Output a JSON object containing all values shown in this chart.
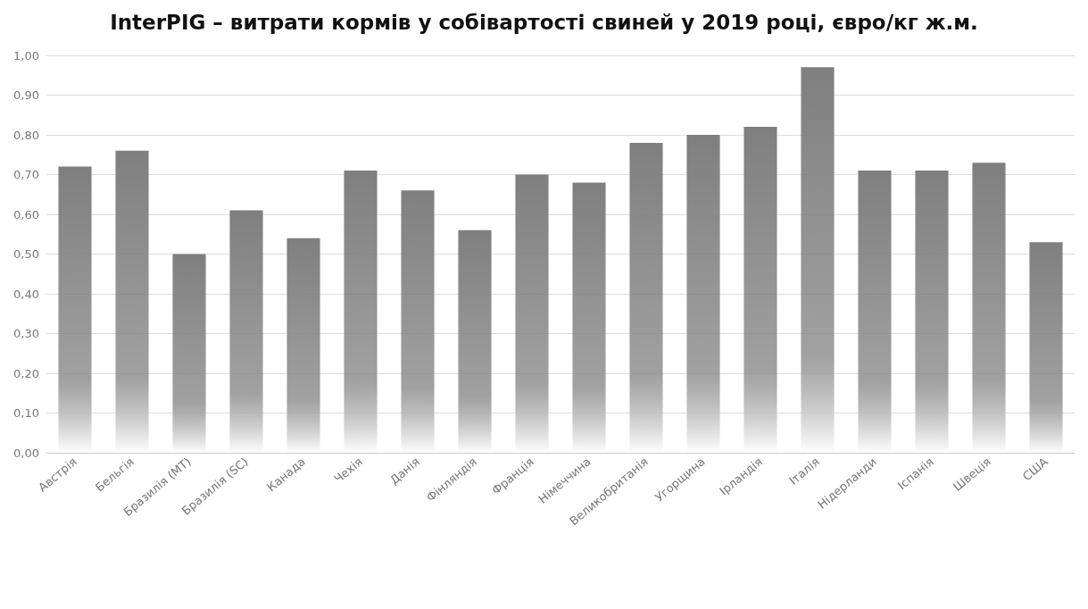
{
  "chart_data": {
    "type": "bar",
    "title": "InterPIG – витрати кормів у собівартості свиней у 2019 році, євро/кг ж.м.",
    "categories": [
      "Австрія",
      "Бельгія",
      "Бразилія (MT)",
      "Бразилія (SC)",
      "Канада",
      "Чехія",
      "Данія",
      "Фінляндія",
      "Франція",
      "Німеччина",
      "Великобританія",
      "Угорщина",
      "Ірландія",
      "Італія",
      "Нідерланди",
      "Іспанія",
      "Швеція",
      "США"
    ],
    "values": [
      0.72,
      0.76,
      0.5,
      0.61,
      0.54,
      0.71,
      0.66,
      0.56,
      0.7,
      0.68,
      0.78,
      0.8,
      0.82,
      0.97,
      0.71,
      0.71,
      0.73,
      0.53
    ],
    "color": "#7f7f7f",
    "ylim": [
      0,
      1
    ],
    "yticks": [
      {
        "value": 0,
        "label": "0,00"
      },
      {
        "value": 0.1,
        "label": "0,10"
      },
      {
        "value": 0.2,
        "label": "0,20"
      },
      {
        "value": 0.3,
        "label": "0,30"
      },
      {
        "value": 0.4,
        "label": "0,40"
      },
      {
        "value": 0.5,
        "label": "0,50"
      },
      {
        "value": 0.6,
        "label": "0,60"
      },
      {
        "value": 0.7,
        "label": "0,70"
      },
      {
        "value": 0.8,
        "label": "0,80"
      },
      {
        "value": 0.9,
        "label": "0,90"
      },
      {
        "value": 1,
        "label": "1,00"
      }
    ],
    "grid": "y"
  }
}
